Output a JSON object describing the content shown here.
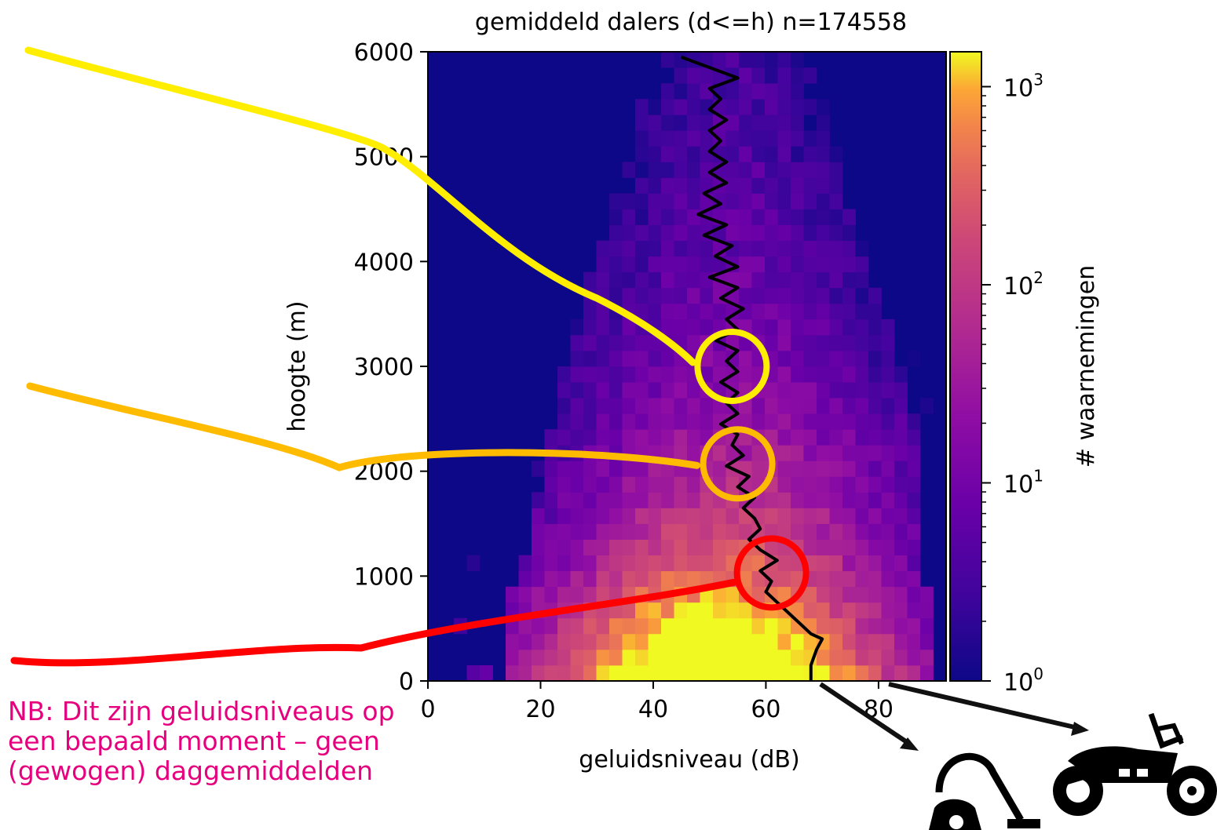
{
  "chart_data": {
    "type": "heatmap",
    "title": "gemiddeld dalers (d<=h) n=174558",
    "xlabel": "geluidsniveau (dB)",
    "ylabel": "hoogte (m)",
    "xlim": [
      0,
      92
    ],
    "ylim": [
      0,
      6000
    ],
    "xticks": [
      "0",
      "20",
      "40",
      "60",
      "80"
    ],
    "yticks": [
      "0",
      "1000",
      "2000",
      "3000",
      "4000",
      "5000",
      "6000"
    ],
    "colorbar": {
      "label": "# waarnemingen",
      "scale": "log",
      "range": [
        1,
        1500
      ],
      "ticks": [
        "10",
        "10",
        "10",
        "10"
      ],
      "tick_exponents": [
        "0",
        "1",
        "2",
        "3"
      ],
      "colormap": "plasma"
    },
    "mean_line": {
      "name": "gemiddeld",
      "color": "#000000",
      "points": [
        [
          68,
          0
        ],
        [
          68,
          150
        ],
        [
          69,
          300
        ],
        [
          70,
          400
        ],
        [
          68,
          450
        ],
        [
          66,
          550
        ],
        [
          64,
          650
        ],
        [
          62,
          750
        ],
        [
          60,
          850
        ],
        [
          61,
          950
        ],
        [
          59,
          1050
        ],
        [
          62,
          1150
        ],
        [
          59,
          1250
        ],
        [
          57,
          1350
        ],
        [
          59,
          1450
        ],
        [
          58,
          1550
        ],
        [
          56,
          1650
        ],
        [
          58,
          1750
        ],
        [
          55,
          1850
        ],
        [
          57,
          1950
        ],
        [
          53,
          2050
        ],
        [
          56,
          2150
        ],
        [
          54,
          2250
        ],
        [
          55,
          2350
        ],
        [
          52,
          2450
        ],
        [
          55,
          2550
        ],
        [
          53,
          2650
        ],
        [
          55,
          2750
        ],
        [
          52,
          2850
        ],
        [
          55,
          2950
        ],
        [
          53,
          3050
        ],
        [
          55,
          3150
        ],
        [
          51,
          3250
        ],
        [
          55,
          3350
        ],
        [
          53,
          3450
        ],
        [
          56,
          3550
        ],
        [
          52,
          3650
        ],
        [
          55,
          3750
        ],
        [
          50,
          3850
        ],
        [
          55,
          3950
        ],
        [
          51,
          4050
        ],
        [
          54,
          4150
        ],
        [
          49,
          4250
        ],
        [
          53,
          4350
        ],
        [
          48,
          4450
        ],
        [
          52,
          4550
        ],
        [
          49,
          4650
        ],
        [
          53,
          4750
        ],
        [
          50,
          4850
        ],
        [
          53,
          4950
        ],
        [
          50,
          5050
        ],
        [
          52,
          5150
        ],
        [
          50,
          5250
        ],
        [
          53,
          5350
        ],
        [
          50,
          5450
        ],
        [
          52,
          5550
        ],
        [
          50,
          5650
        ],
        [
          55,
          5750
        ],
        [
          45,
          5950
        ]
      ]
    },
    "annotations": [
      {
        "label": "",
        "color": "#ffee00",
        "circle_at": [
          54,
          3000
        ],
        "line_from": "top-left"
      },
      {
        "label": "",
        "color": "#ffbb00",
        "circle_at": [
          55,
          2070
        ],
        "line_from": "left"
      },
      {
        "label": "",
        "color": "#ff0000",
        "circle_at": [
          61,
          1030
        ],
        "line_from": "bottom-left"
      }
    ]
  },
  "icons": [
    {
      "name": "vacuum-cleaner-icon",
      "points_to_x": 68
    },
    {
      "name": "motorcycle-icon",
      "points_to_x": 82
    }
  ],
  "note": "NB: Dit zijn geluidsniveaus op een bepaald moment – geen (gewogen) daggemiddelden"
}
